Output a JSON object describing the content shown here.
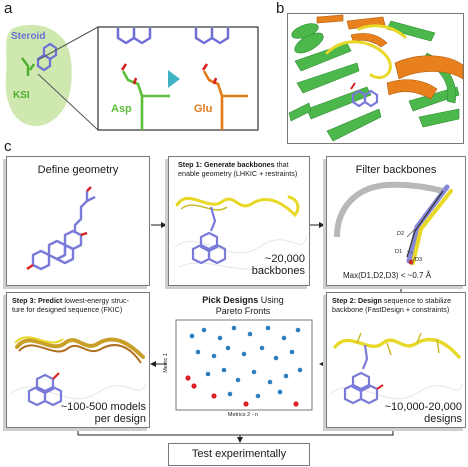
{
  "panel_a": {
    "letter": "a",
    "steroid_label": "Steroid",
    "ksi_label": "KSI",
    "asp_label": "Asp",
    "glu_label": "Glu",
    "colors": {
      "steroid": "#6f6fd6",
      "asp": "#5bbf3a",
      "glu": "#e07a18",
      "blob": "#cfe8b0",
      "arrow": "#3fb3c2"
    }
  },
  "panel_b": {
    "letter": "b"
  },
  "panel_c": {
    "letter": "c",
    "define": {
      "title": "Define geometry"
    },
    "step1": {
      "bold": "Step 1: Generate backbones",
      "rest": " that",
      "line2": "enable geometry (LHKIC + restraints)",
      "count_line1": "~20,000",
      "count_line2": "backbones"
    },
    "filter": {
      "title": "Filter backbones",
      "d1": "D1",
      "d2": "D2",
      "d3": "D3",
      "formula": "Max(D1,D2,D3) < ~0.7 Å"
    },
    "step3": {
      "bold": "Step 3: Predict",
      "rest": " lowest-energy struc-",
      "line2": "ture for designed sequence (FKIC)",
      "count_line1": "~100-500 models",
      "count_line2": "per design"
    },
    "pick": {
      "bold": "Pick Designs",
      "rest": " Using",
      "line2": "Pareto Fronts",
      "ylabel": "Metric 1",
      "xlabel": "Metrics 2 - n"
    },
    "step2": {
      "bold": "Step 2: Design",
      "rest": " sequence to stabilize",
      "line2": "backbone (FastDesign + constraints)",
      "count_line1": "~10,000-20,000",
      "count_line2": "designs"
    },
    "test": {
      "title": "Test experimentally"
    }
  }
}
